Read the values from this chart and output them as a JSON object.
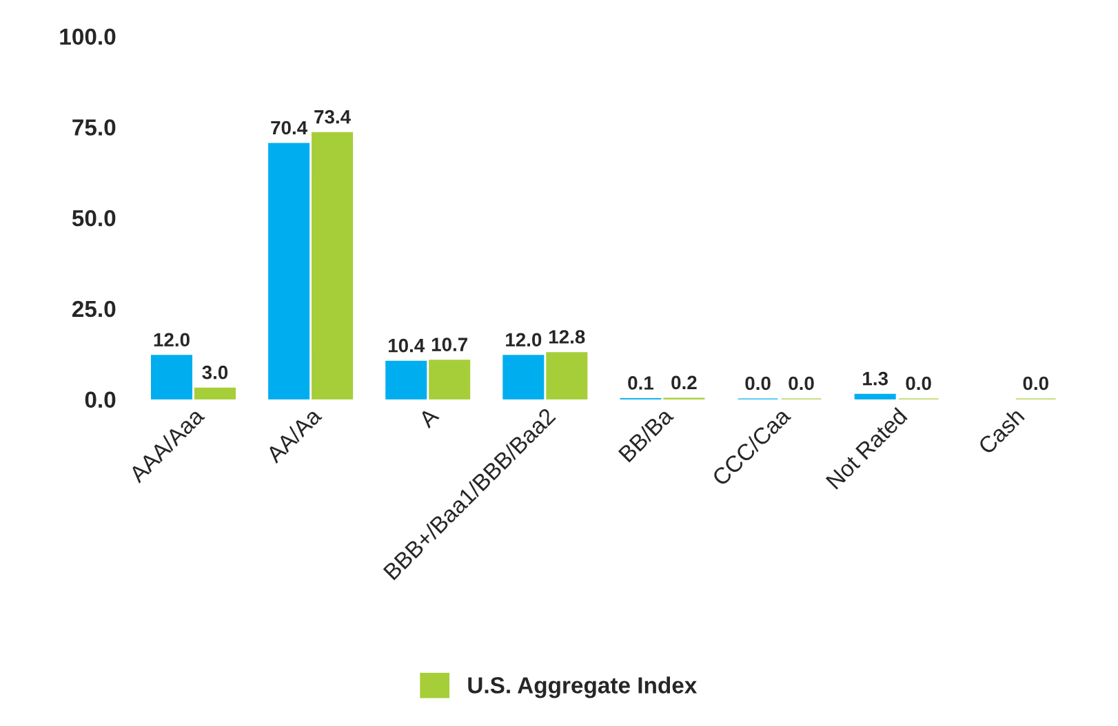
{
  "chart_data": {
    "type": "bar",
    "categories": [
      "AAA/Aaa",
      "AA/Aa",
      "A",
      "BBB+/Baa1/BBB/Baa2",
      "BB/Ba",
      "CCC/Caa",
      "Not Rated",
      "Cash"
    ],
    "series": [
      {
        "color": "#00aeef",
        "values": [
          12.0,
          70.4,
          10.4,
          12.0,
          0.1,
          0.0,
          1.3,
          null
        ],
        "value_labels": [
          "12.0",
          "70.4",
          "10.4",
          "12.0",
          "0.1",
          "0.0",
          "1.3",
          null
        ]
      },
      {
        "name": "U.S. Aggregate Index",
        "color": "#a6ce39",
        "values": [
          3.0,
          73.4,
          10.7,
          12.8,
          0.2,
          0.0,
          0.0,
          0.0
        ],
        "value_labels": [
          "3.0",
          "73.4",
          "10.7",
          "12.8",
          "0.2",
          "0.0",
          "0.0",
          "0.0"
        ]
      }
    ],
    "ylim": [
      0,
      100
    ],
    "yticks": [
      {
        "value": 0,
        "label": "0.0"
      },
      {
        "value": 25,
        "label": "25.0"
      },
      {
        "value": 50,
        "label": "50.0"
      },
      {
        "value": 75,
        "label": "75.0"
      },
      {
        "value": 100,
        "label": "100.0"
      }
    ],
    "grid": false,
    "legend": "bottom"
  }
}
